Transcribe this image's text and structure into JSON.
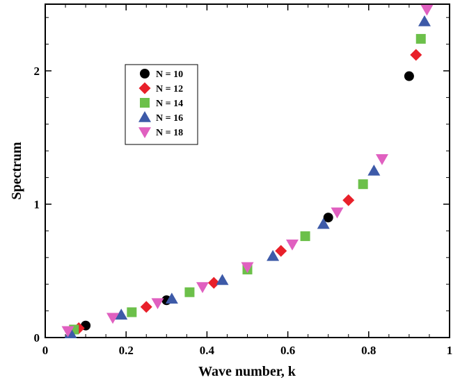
{
  "chart_data": {
    "type": "scatter",
    "xlabel": "Wave number, k",
    "ylabel": "Spectrum",
    "xlim": [
      0,
      1
    ],
    "ylim": [
      0,
      2.5
    ],
    "xticks": [
      0,
      0.2,
      0.4,
      0.6,
      0.8,
      1
    ],
    "xtick_labels": [
      "0",
      "0.2",
      "0.4",
      "0.6",
      "0.8",
      "1"
    ],
    "yticks": [
      0,
      1,
      2
    ],
    "ytick_labels": [
      "0",
      "1",
      "2"
    ],
    "grid": false,
    "legend_position": "upper-left",
    "series": [
      {
        "name": "N = 10",
        "marker": "circle",
        "color": "#000000",
        "x": [
          0.1,
          0.3,
          0.5,
          0.7,
          0.9
        ],
        "y": [
          0.09,
          0.28,
          0.52,
          0.9,
          1.96
        ]
      },
      {
        "name": "N = 12",
        "marker": "diamond",
        "color": "#e8202a",
        "x": [
          0.083,
          0.25,
          0.417,
          0.583,
          0.75,
          0.917
        ],
        "y": [
          0.07,
          0.23,
          0.41,
          0.65,
          1.03,
          2.12
        ]
      },
      {
        "name": "N = 14",
        "marker": "square",
        "color": "#6cc04a",
        "x": [
          0.071,
          0.214,
          0.357,
          0.5,
          0.643,
          0.786,
          0.929
        ],
        "y": [
          0.06,
          0.19,
          0.34,
          0.51,
          0.76,
          1.15,
          2.24
        ]
      },
      {
        "name": "N = 16",
        "marker": "triangle-up",
        "color": "#3d5aa8",
        "x": [
          0.063,
          0.188,
          0.313,
          0.438,
          0.563,
          0.688,
          0.813,
          0.938
        ],
        "y": [
          0.03,
          0.17,
          0.29,
          0.43,
          0.61,
          0.85,
          1.25,
          2.37
        ]
      },
      {
        "name": "N = 18",
        "marker": "triangle-down",
        "color": "#e060c0",
        "x": [
          0.056,
          0.167,
          0.278,
          0.389,
          0.5,
          0.611,
          0.722,
          0.833,
          0.944
        ],
        "y": [
          0.05,
          0.15,
          0.26,
          0.38,
          0.53,
          0.7,
          0.94,
          1.34,
          2.46
        ]
      }
    ]
  }
}
